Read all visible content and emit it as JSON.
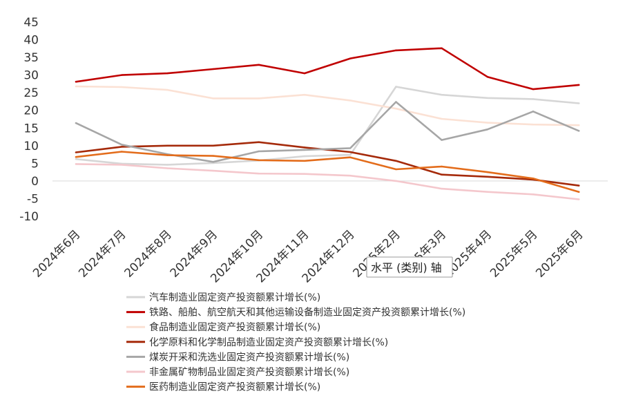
{
  "chart_data": {
    "type": "line",
    "categories": [
      "2024年6月",
      "2024年7月",
      "2024年8月",
      "2024年9月",
      "2024年10月",
      "2024年11月",
      "2024年12月",
      "2025年2月",
      "2025年3月",
      "2025年4月",
      "2025年5月",
      "2025年6月"
    ],
    "ylim": [
      -10,
      45
    ],
    "yticks": [
      45,
      40,
      35,
      30,
      25,
      20,
      15,
      10,
      5,
      0,
      -5,
      -10
    ],
    "grid": false,
    "legend_position": "bottom",
    "series": [
      {
        "name": "汽车制造业固定资产投资额累计增长(%)",
        "color": "#d6d6d6",
        "values": [
          6.2,
          4.9,
          4.6,
          5.1,
          5.8,
          7.0,
          7.4,
          26.7,
          24.4,
          23.5,
          23.2,
          22.0
        ]
      },
      {
        "name": "铁路、船舶、航空航天和其他运输设备制造业固定资产投资额累计增长(%)",
        "color": "#c00000",
        "values": [
          28.1,
          30.0,
          30.5,
          31.7,
          32.9,
          30.5,
          34.7,
          37.0,
          37.6,
          29.5,
          26.0,
          27.2
        ]
      },
      {
        "name": "食品制造业固定资产投资额累计增长(%)",
        "color": "#fbe1d4",
        "values": [
          26.8,
          26.6,
          25.8,
          23.4,
          23.4,
          24.4,
          22.8,
          20.5,
          17.6,
          16.5,
          16.0,
          15.8
        ]
      },
      {
        "name": "化学原料和化学制品制造业固定资产投资额累计增长(%)",
        "color": "#a52a0a",
        "values": [
          8.1,
          9.7,
          10.0,
          10.0,
          11.0,
          9.5,
          8.2,
          5.7,
          1.8,
          1.2,
          0.4,
          -1.3
        ]
      },
      {
        "name": "煤炭开采和洗选业固定资产投资额累计增长(%)",
        "color": "#a6a6a6",
        "values": [
          16.4,
          10.3,
          7.6,
          5.4,
          8.4,
          8.8,
          9.3,
          22.4,
          11.6,
          14.6,
          19.7,
          14.2
        ]
      },
      {
        "name": "非金属矿物制品业固定资产投资额累计增长(%)",
        "color": "#f4c7cc",
        "values": [
          4.8,
          4.6,
          3.6,
          2.9,
          2.1,
          2.0,
          1.5,
          0.0,
          -2.2,
          -3.1,
          -3.8,
          -5.2
        ]
      },
      {
        "name": "医药制造业固定资产投资额累计增长(%)",
        "color": "#e36c1b",
        "values": [
          6.8,
          8.3,
          7.3,
          7.1,
          5.9,
          5.7,
          6.7,
          3.3,
          4.1,
          2.5,
          0.7,
          -3.1
        ]
      }
    ]
  },
  "tooltip": {
    "text": "水平 (类别) 轴"
  }
}
